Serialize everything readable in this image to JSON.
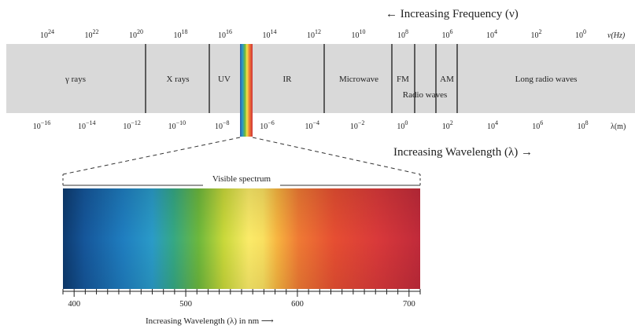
{
  "frequency_heading": "← Increasing Frequency (ν)",
  "wavelength_heading": "Increasing Wavelength (λ) →",
  "frequency_unit": "ν(Hz)",
  "wavelength_unit": "λ(m)",
  "frequency_ticks": [
    {
      "base": "10",
      "exp": "24"
    },
    {
      "base": "10",
      "exp": "22"
    },
    {
      "base": "10",
      "exp": "20"
    },
    {
      "base": "10",
      "exp": "18"
    },
    {
      "base": "10",
      "exp": "16"
    },
    {
      "base": "10",
      "exp": "14"
    },
    {
      "base": "10",
      "exp": "12"
    },
    {
      "base": "10",
      "exp": "10"
    },
    {
      "base": "10",
      "exp": "8"
    },
    {
      "base": "10",
      "exp": "6"
    },
    {
      "base": "10",
      "exp": "4"
    },
    {
      "base": "10",
      "exp": "2"
    },
    {
      "base": "10",
      "exp": "0"
    }
  ],
  "wavelength_ticks": [
    {
      "base": "10",
      "exp": "−16"
    },
    {
      "base": "10",
      "exp": "−14"
    },
    {
      "base": "10",
      "exp": "−12"
    },
    {
      "base": "10",
      "exp": "−10"
    },
    {
      "base": "10",
      "exp": "−8"
    },
    {
      "base": "10",
      "exp": "−6"
    },
    {
      "base": "10",
      "exp": "−4"
    },
    {
      "base": "10",
      "exp": "−2"
    },
    {
      "base": "10",
      "exp": "0"
    },
    {
      "base": "10",
      "exp": "2"
    },
    {
      "base": "10",
      "exp": "4"
    },
    {
      "base": "10",
      "exp": "6"
    },
    {
      "base": "10",
      "exp": "8"
    }
  ],
  "regions": {
    "gamma": "γ rays",
    "xray": "X rays",
    "uv": "UV",
    "ir": "IR",
    "microwave": "Microwave",
    "fm": "FM",
    "am": "AM",
    "radio": "Radio waves",
    "long_radio": "Long radio waves"
  },
  "visible_title": "Visible spectrum",
  "visible_ticks": [
    "400",
    "500",
    "600",
    "700"
  ],
  "visible_caption": "Increasing Wavelength (λ) in nm ⟶",
  "colors": {
    "band_background": "#d9d9d9",
    "divider": "#1a1a1a"
  }
}
